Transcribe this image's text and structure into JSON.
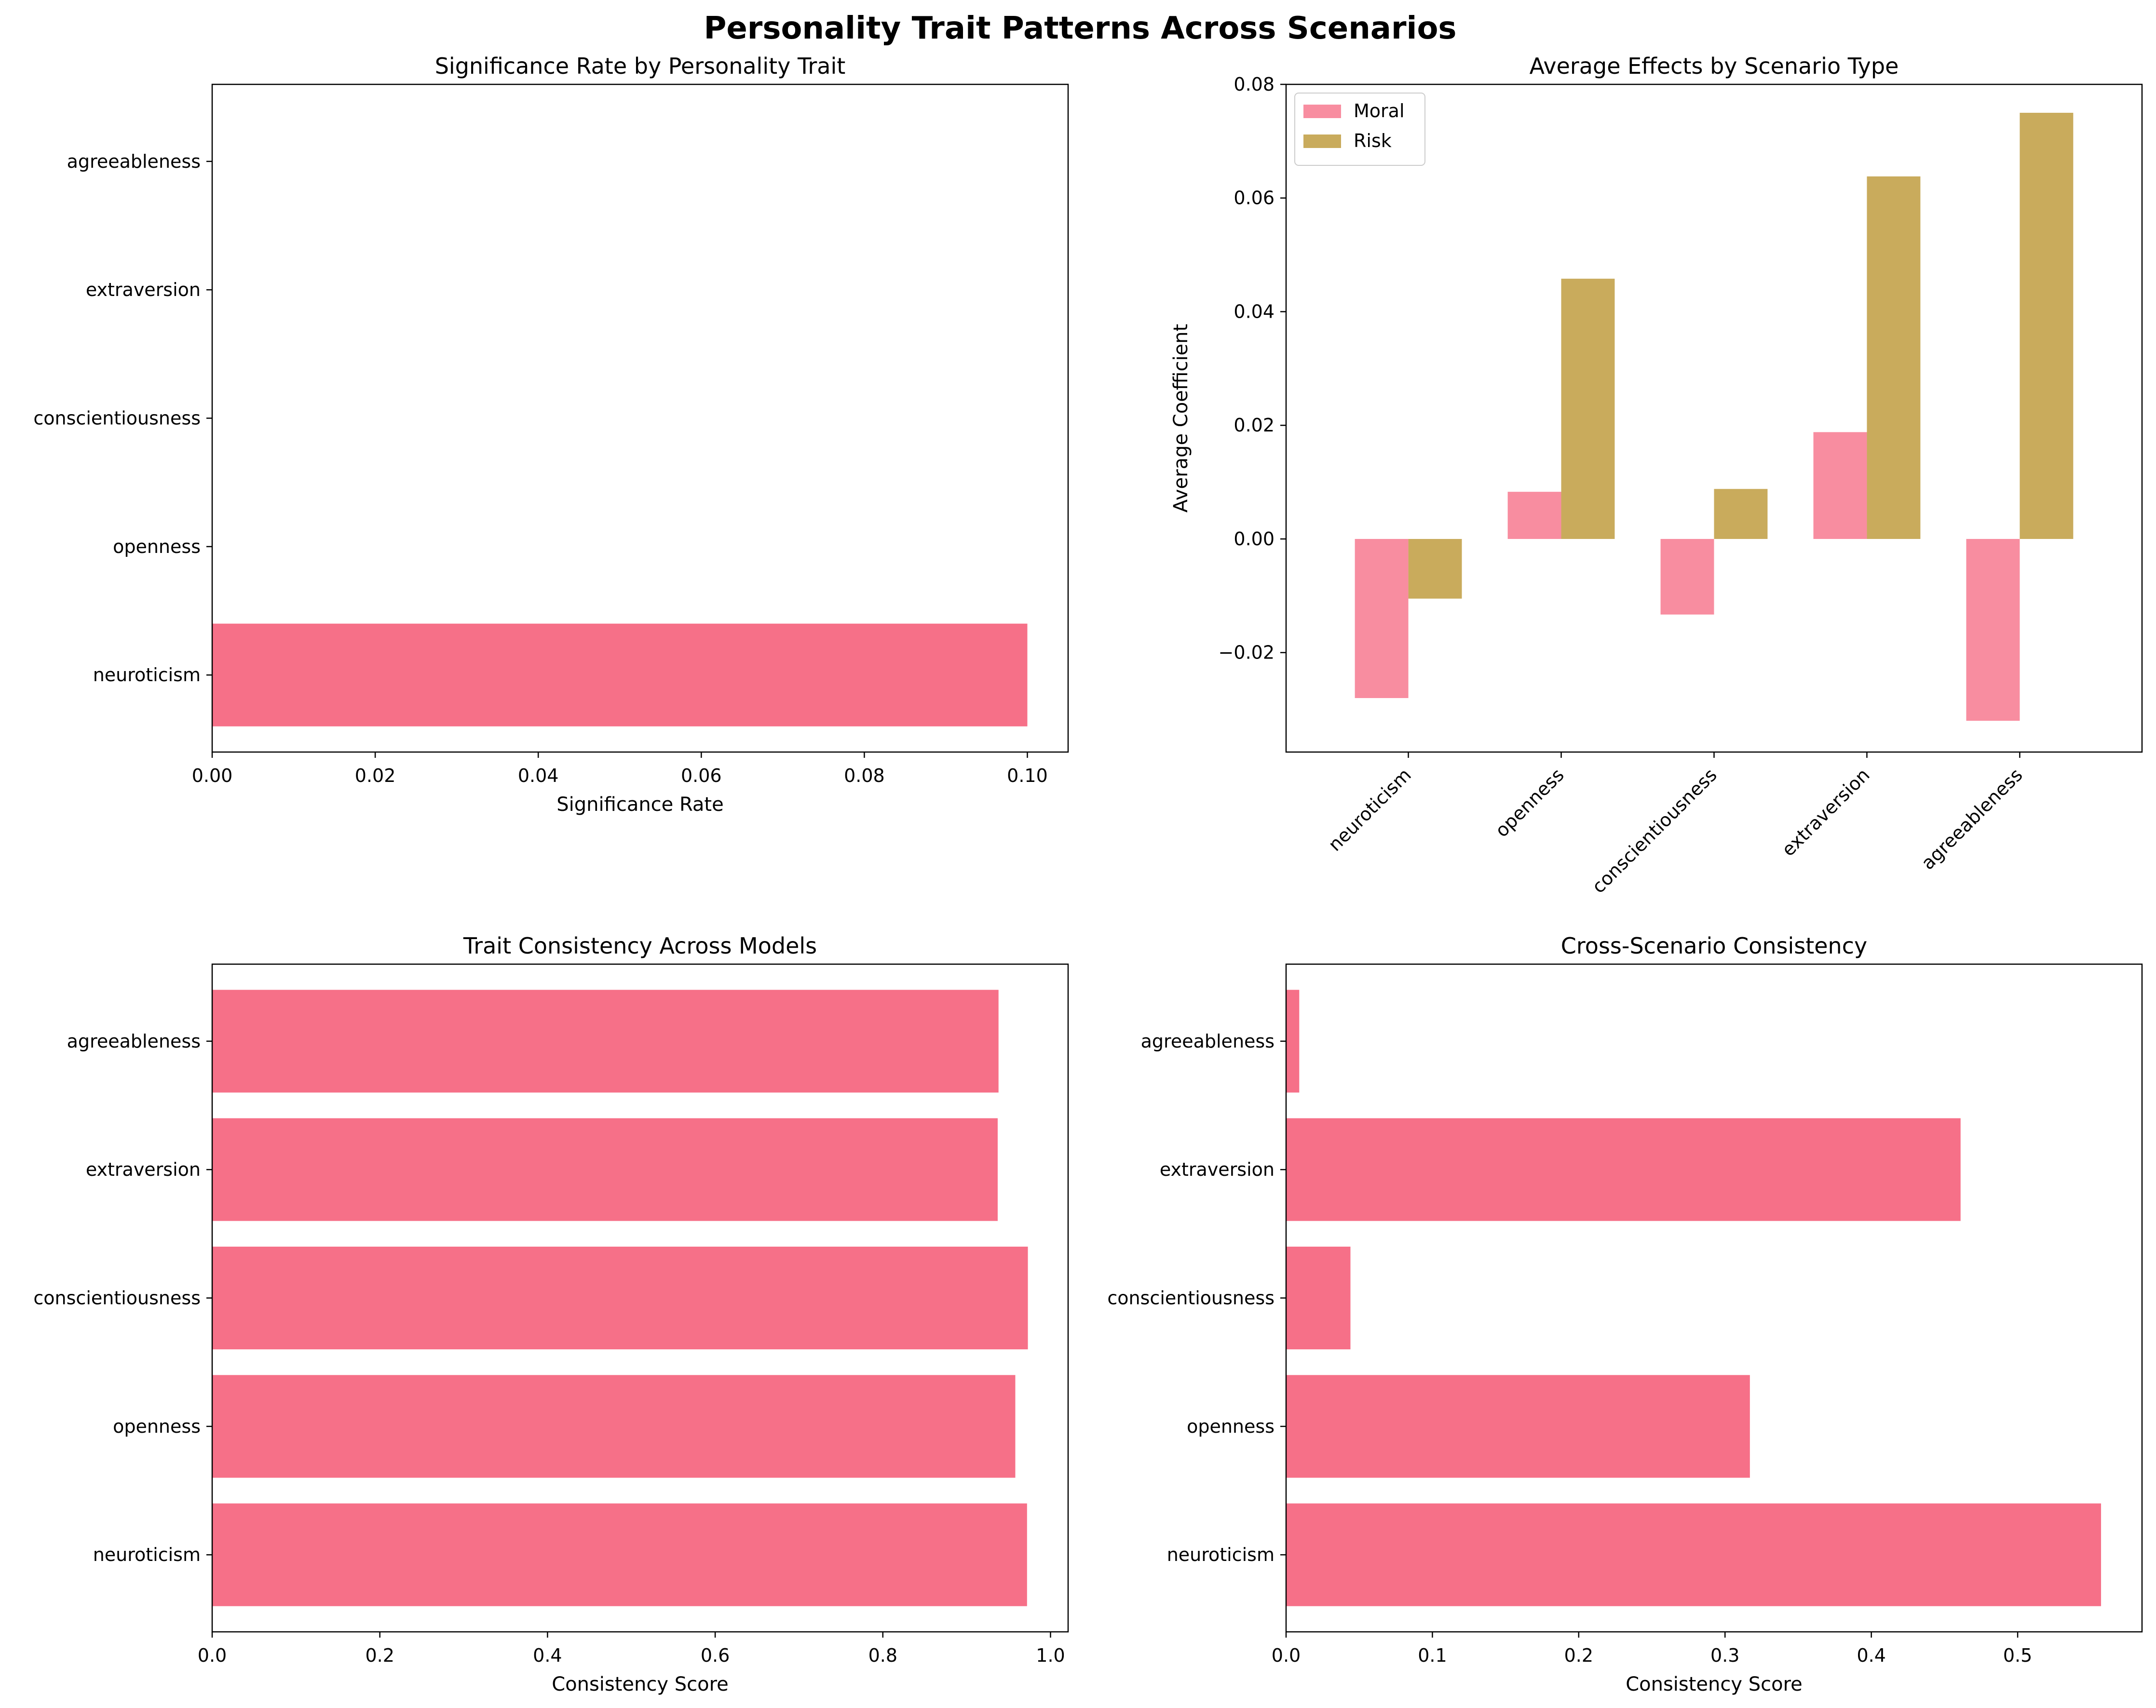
{
  "suptitle": "Personality Trait Patterns Across Scenarios",
  "colors": {
    "primary": "#f67088",
    "moral": "#f67088",
    "risk": "#c9ab5c"
  },
  "chart_data": [
    {
      "type": "bar",
      "orientation": "horizontal",
      "title": "Significance Rate by Personality Trait",
      "xlabel": "Significance Rate",
      "ylabel": "",
      "categories": [
        "neuroticism",
        "openness",
        "conscientiousness",
        "extraversion",
        "agreeableness"
      ],
      "values": [
        0.1,
        0,
        0,
        0,
        0
      ],
      "xlim": [
        0,
        0.105
      ],
      "xticks": [
        "0.00",
        "0.02",
        "0.04",
        "0.06",
        "0.08",
        "0.10"
      ],
      "grid": false
    },
    {
      "type": "bar",
      "orientation": "vertical",
      "title": "Average Effects by Scenario Type",
      "xlabel": "",
      "ylabel": "Average Coefficient",
      "categories": [
        "neuroticism",
        "openness",
        "conscientiousness",
        "extraversion",
        "agreeableness"
      ],
      "series": [
        {
          "name": "Moral",
          "values": [
            -0.028,
            0.0083,
            -0.0133,
            0.0188,
            -0.032
          ]
        },
        {
          "name": "Risk",
          "values": [
            -0.0105,
            0.0458,
            0.0088,
            0.0638,
            0.075
          ]
        }
      ],
      "ylim": [
        -0.0375,
        0.08
      ],
      "yticks": [
        "−0.02",
        "0.00",
        "0.02",
        "0.04",
        "0.06",
        "0.08"
      ],
      "legend": "top-left",
      "grid": false
    },
    {
      "type": "bar",
      "orientation": "horizontal",
      "title": "Trait Consistency Across Models",
      "xlabel": "Consistency Score",
      "ylabel": "",
      "categories": [
        "neuroticism",
        "openness",
        "conscientiousness",
        "extraversion",
        "agreeableness"
      ],
      "values": [
        0.972,
        0.958,
        0.973,
        0.937,
        0.938
      ],
      "xlim": [
        0,
        1.021
      ],
      "xticks": [
        "0.0",
        "0.2",
        "0.4",
        "0.6",
        "0.8",
        "1.0"
      ],
      "grid": false
    },
    {
      "type": "bar",
      "orientation": "horizontal",
      "title": "Cross-Scenario Consistency",
      "xlabel": "Consistency Score",
      "ylabel": "",
      "categories": [
        "neuroticism",
        "openness",
        "conscientiousness",
        "extraversion",
        "agreeableness"
      ],
      "values": [
        0.557,
        0.317,
        0.044,
        0.461,
        0.009
      ],
      "xlim": [
        0,
        0.585
      ],
      "xticks": [
        "0.0",
        "0.1",
        "0.2",
        "0.3",
        "0.4",
        "0.5"
      ],
      "grid": false
    }
  ]
}
